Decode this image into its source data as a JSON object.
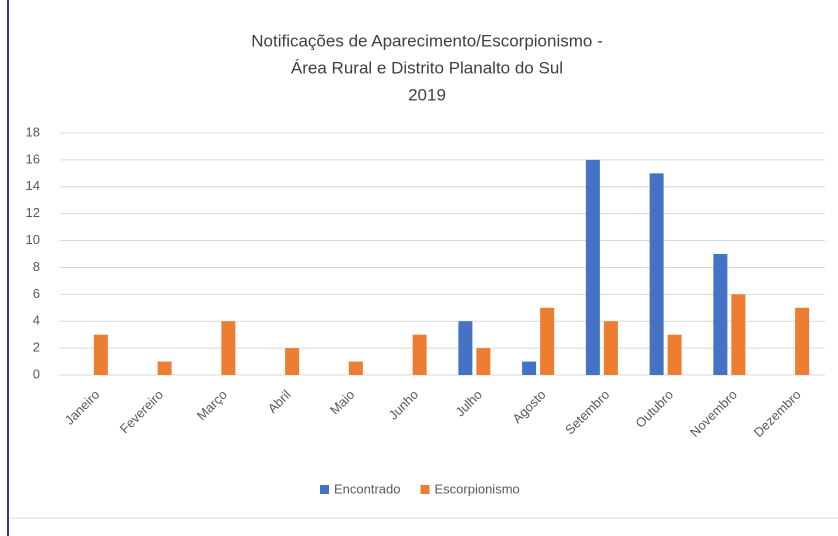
{
  "chart_data": {
    "type": "bar",
    "title": [
      "Notificações de Aparecimento/Escorpionismo -",
      "Área Rural e Distrito Planalto do Sul",
      "2019"
    ],
    "categories": [
      "Janeiro",
      "Fevereiro",
      "Março",
      "Abril",
      "Maio",
      "Junho",
      "Julho",
      "Agosto",
      "Setembro",
      "Outubro",
      "Novembro",
      "Dezembro"
    ],
    "series": [
      {
        "name": "Encontrado",
        "color": "#4472c4",
        "values": [
          0,
          0,
          0,
          0,
          0,
          0,
          4,
          1,
          16,
          15,
          9,
          0
        ]
      },
      {
        "name": "Escorpionismo",
        "color": "#ed7d31",
        "values": [
          3,
          1,
          4,
          2,
          1,
          3,
          2,
          5,
          4,
          3,
          6,
          5
        ]
      }
    ],
    "ylim": [
      0,
      18
    ],
    "yticks": [
      0,
      2,
      4,
      6,
      8,
      10,
      12,
      14,
      16,
      18
    ],
    "grid": true,
    "legend": "bottom"
  }
}
